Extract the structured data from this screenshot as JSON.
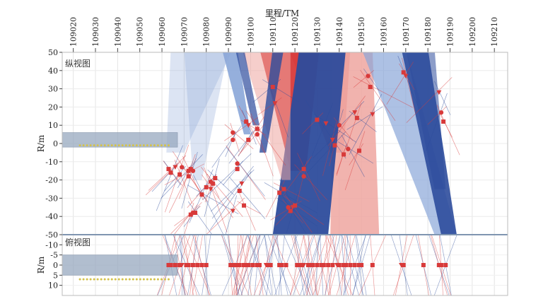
{
  "chart_data": {
    "type": "scatter",
    "title": "里程/TM",
    "xlabel": "里程/TM",
    "x_ticks": [
      109020,
      109030,
      109040,
      109050,
      109060,
      109070,
      109080,
      109090,
      109100,
      109110,
      109120,
      109130,
      109140,
      109150,
      109160,
      109170,
      109180,
      109190,
      109200,
      109210
    ],
    "xlim": [
      109015,
      109216
    ],
    "colors": {
      "red": "#d83a3a",
      "blue": "#2d4c9c",
      "lightblue": "#8aa6d8",
      "pink": "#eea6a0",
      "tunnel": "#97a9bf",
      "dot": "#d4c24a"
    },
    "panels": [
      {
        "name": "纵视图",
        "ylabel": "R/m",
        "ylim": [
          -50,
          50
        ],
        "y_ticks": [
          50,
          40,
          30,
          20,
          10,
          0,
          -10,
          -20,
          -30,
          -40,
          -50
        ],
        "tunnel": {
          "x": [
            109015,
            109067
          ],
          "y": [
            -2,
            6
          ]
        },
        "tunnel_dots_y": -1,
        "fans": [
          {
            "x_top": [
              109104,
              109131
            ],
            "x_bottom": [
              109118,
              109125
            ],
            "y_bottom": -15,
            "color": "red",
            "opacity": 0.95
          },
          {
            "x_top": [
              109117,
              109145
            ],
            "x_bottom": [
              109136,
              109142
            ],
            "y_bottom": -5,
            "color": "red",
            "opacity": 0.55
          },
          {
            "x_top": [
              109137,
              109155
            ],
            "x_bottom": [
              109136,
              109158
            ],
            "y_bottom": -50,
            "color": "pink",
            "opacity": 0.85
          },
          {
            "x_top": [
              109122,
              109143
            ],
            "x_bottom": [
              109110,
              109135
            ],
            "y_bottom": -50,
            "color": "blue",
            "opacity": 0.95
          },
          {
            "x_top": [
              109096,
              109118
            ],
            "x_bottom": [
              109114,
              109118
            ],
            "y_bottom": -20,
            "color": "pink",
            "opacity": 0.55
          },
          {
            "x_top": [
              109150,
              109170
            ],
            "x_bottom": [
              109183,
              109193
            ],
            "y_bottom": -50,
            "color": "lightblue",
            "opacity": 0.7
          },
          {
            "x_top": [
              109168,
              109180
            ],
            "x_bottom": [
              109186,
              109193
            ],
            "y_bottom": -50,
            "color": "blue",
            "opacity": 0.9
          },
          {
            "x_top": [
              109170,
              109183
            ],
            "x_bottom": [
              109183,
              109188
            ],
            "y_bottom": -25,
            "color": "blue",
            "opacity": 0.55
          },
          {
            "x_top": [
              109087,
              109094
            ],
            "x_bottom": [
              109097,
              109100
            ],
            "y_bottom": 5,
            "color": "lightblue",
            "opacity": 0.9
          },
          {
            "x_top": [
              109093,
              109097
            ],
            "x_bottom": [
              109101,
              109104
            ],
            "y_bottom": 10,
            "color": "blue",
            "opacity": 0.7
          },
          {
            "x_top": [
              109110,
              109115
            ],
            "x_bottom": [
              109104,
              109107
            ],
            "y_bottom": -5,
            "color": "blue",
            "opacity": 0.8
          },
          {
            "x_top": [
              109064,
              109092
            ],
            "x_bottom": [
              109062,
              109070
            ],
            "y_bottom": -5,
            "color": "lightblue",
            "opacity": 0.3
          },
          {
            "x_top": [
              109070,
              109090
            ],
            "x_bottom": [
              109074,
              109078
            ],
            "y_bottom": -20,
            "color": "lightblue",
            "opacity": 0.3
          }
        ],
        "points": [
          {
            "x": 109063,
            "y": -14,
            "m": "s"
          },
          {
            "x": 109064,
            "y": -16,
            "m": "s"
          },
          {
            "x": 109066,
            "y": -13,
            "m": "t"
          },
          {
            "x": 109069,
            "y": -13,
            "m": "c"
          },
          {
            "x": 109068,
            "y": -17,
            "m": "s"
          },
          {
            "x": 109072,
            "y": -15,
            "m": "s"
          },
          {
            "x": 109073,
            "y": -14,
            "m": "s"
          },
          {
            "x": 109074,
            "y": -15,
            "m": "c"
          },
          {
            "x": 109072,
            "y": -18,
            "m": "s"
          },
          {
            "x": 109078,
            "y": -28,
            "m": "s"
          },
          {
            "x": 109080,
            "y": -24,
            "m": "s"
          },
          {
            "x": 109082,
            "y": -21,
            "m": "c"
          },
          {
            "x": 109082,
            "y": -25,
            "m": "t"
          },
          {
            "x": 109084,
            "y": -19,
            "m": "s"
          },
          {
            "x": 109083,
            "y": -22,
            "m": "s"
          },
          {
            "x": 109073,
            "y": -39,
            "m": "s"
          },
          {
            "x": 109074,
            "y": -38,
            "m": "c"
          },
          {
            "x": 109075,
            "y": -38,
            "m": "s"
          },
          {
            "x": 109092,
            "y": 6,
            "m": "c"
          },
          {
            "x": 109092,
            "y": 2,
            "m": "c"
          },
          {
            "x": 109094,
            "y": -14,
            "m": "s"
          },
          {
            "x": 109094,
            "y": -11,
            "m": "c"
          },
          {
            "x": 109095,
            "y": -26,
            "m": "s"
          },
          {
            "x": 109096,
            "y": -22,
            "m": "t"
          },
          {
            "x": 109092,
            "y": -37,
            "m": "t"
          },
          {
            "x": 109097,
            "y": -34,
            "m": "s"
          },
          {
            "x": 109098,
            "y": 12,
            "m": "s"
          },
          {
            "x": 109099,
            "y": 10,
            "m": "t"
          },
          {
            "x": 109099,
            "y": 2,
            "m": "s"
          },
          {
            "x": 109103,
            "y": 8,
            "m": "s"
          },
          {
            "x": 109103,
            "y": 5,
            "m": "c"
          },
          {
            "x": 109110,
            "y": 31,
            "m": "s"
          },
          {
            "x": 109111,
            "y": 22,
            "m": "t"
          },
          {
            "x": 109113,
            "y": -27,
            "m": "s"
          },
          {
            "x": 109115,
            "y": -25,
            "m": "s"
          },
          {
            "x": 109117,
            "y": -35,
            "m": "c"
          },
          {
            "x": 109118,
            "y": -37,
            "m": "s"
          },
          {
            "x": 109119,
            "y": -35,
            "m": "t"
          },
          {
            "x": 109120,
            "y": -34,
            "m": "s"
          },
          {
            "x": 109124,
            "y": -14,
            "m": "s"
          },
          {
            "x": 109124,
            "y": -18,
            "m": "c"
          },
          {
            "x": 109130,
            "y": 13,
            "m": "s"
          },
          {
            "x": 109134,
            "y": 11,
            "m": "t"
          },
          {
            "x": 109137,
            "y": 2,
            "m": "t"
          },
          {
            "x": 109138,
            "y": -1,
            "m": "s"
          },
          {
            "x": 109140,
            "y": 10,
            "m": "c"
          },
          {
            "x": 109142,
            "y": -6,
            "m": "s"
          },
          {
            "x": 109144,
            "y": -3,
            "m": "c"
          },
          {
            "x": 109147,
            "y": 17,
            "m": "t"
          },
          {
            "x": 109148,
            "y": 14,
            "m": "s"
          },
          {
            "x": 109149,
            "y": -4,
            "m": "s"
          },
          {
            "x": 109153,
            "y": 37,
            "m": "c"
          },
          {
            "x": 109154,
            "y": 31,
            "m": "s"
          },
          {
            "x": 109155,
            "y": 16,
            "m": "t"
          },
          {
            "x": 109169,
            "y": 39,
            "m": "s"
          },
          {
            "x": 109170,
            "y": 37,
            "m": "t"
          },
          {
            "x": 109185,
            "y": 28,
            "m": "t"
          },
          {
            "x": 109186,
            "y": 17,
            "m": "c"
          },
          {
            "x": 109187,
            "y": 12,
            "m": "s"
          }
        ]
      },
      {
        "name": "俯视图",
        "ylabel": "R/m",
        "ylim": [
          -15,
          15
        ],
        "y_ticks": [
          -10,
          -5,
          0,
          5,
          10
        ],
        "tunnel": {
          "x": [
            109015,
            109067
          ],
          "y": [
            -5,
            5
          ]
        },
        "tunnel_dots_y": 7,
        "point_y": 0,
        "points_x": [
          109063,
          109064,
          109066,
          109068,
          109069,
          109071,
          109072,
          109074,
          109076,
          109078,
          109080,
          109091,
          109092,
          109093,
          109094,
          109095,
          109097,
          109098,
          109099,
          109101,
          109103,
          109104,
          109107,
          109108,
          109109,
          109113,
          109114,
          109116,
          109121,
          109122,
          109123,
          109124,
          109126,
          109127,
          109128,
          109130,
          109132,
          109133,
          109135,
          109137,
          109139,
          109140,
          109142,
          109143,
          109145,
          109147,
          109149,
          109150,
          109155,
          109168,
          109169,
          109178,
          109185,
          109186,
          109188
        ]
      }
    ]
  }
}
